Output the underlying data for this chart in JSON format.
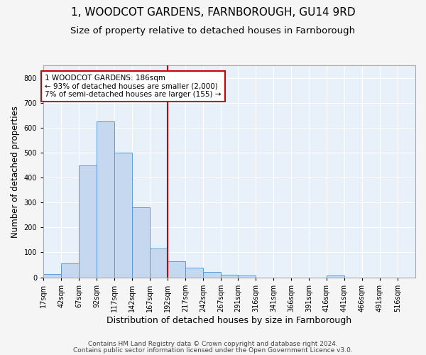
{
  "title": "1, WOODCOT GARDENS, FARNBOROUGH, GU14 9RD",
  "subtitle": "Size of property relative to detached houses in Farnborough",
  "xlabel": "Distribution of detached houses by size in Farnborough",
  "ylabel": "Number of detached properties",
  "bar_values": [
    12,
    55,
    450,
    625,
    502,
    280,
    115,
    65,
    38,
    22,
    10,
    8,
    0,
    0,
    0,
    0,
    8,
    0,
    0,
    0
  ],
  "bin_edges": [
    17,
    42,
    67,
    92,
    117,
    142,
    167,
    192,
    217,
    242,
    267,
    291,
    316,
    341,
    366,
    391,
    416,
    441,
    466,
    491,
    516
  ],
  "x_tick_labels": [
    "17sqm",
    "42sqm",
    "67sqm",
    "92sqm",
    "117sqm",
    "142sqm",
    "167sqm",
    "192sqm",
    "217sqm",
    "242sqm",
    "267sqm",
    "291sqm",
    "316sqm",
    "341sqm",
    "366sqm",
    "391sqm",
    "416sqm",
    "441sqm",
    "466sqm",
    "491sqm",
    "516sqm"
  ],
  "bar_color": "#c5d8f0",
  "bar_edge_color": "#5b9bd5",
  "background_color": "#e8f0fa",
  "grid_color": "#ffffff",
  "vline_x": 192,
  "vline_color": "#cc0000",
  "annotation_text": "1 WOODCOT GARDENS: 186sqm\n← 93% of detached houses are smaller (2,000)\n7% of semi-detached houses are larger (155) →",
  "annotation_box_color": "#ffffff",
  "annotation_box_edge_color": "#cc0000",
  "ylim": [
    0,
    850
  ],
  "xlim": [
    17,
    541
  ],
  "footnote1": "Contains HM Land Registry data © Crown copyright and database right 2024.",
  "footnote2": "Contains public sector information licensed under the Open Government Licence v3.0.",
  "title_fontsize": 11,
  "subtitle_fontsize": 9.5,
  "xlabel_fontsize": 9,
  "ylabel_fontsize": 8.5,
  "tick_fontsize": 7,
  "annotation_fontsize": 7.5,
  "footnote_fontsize": 6.5
}
